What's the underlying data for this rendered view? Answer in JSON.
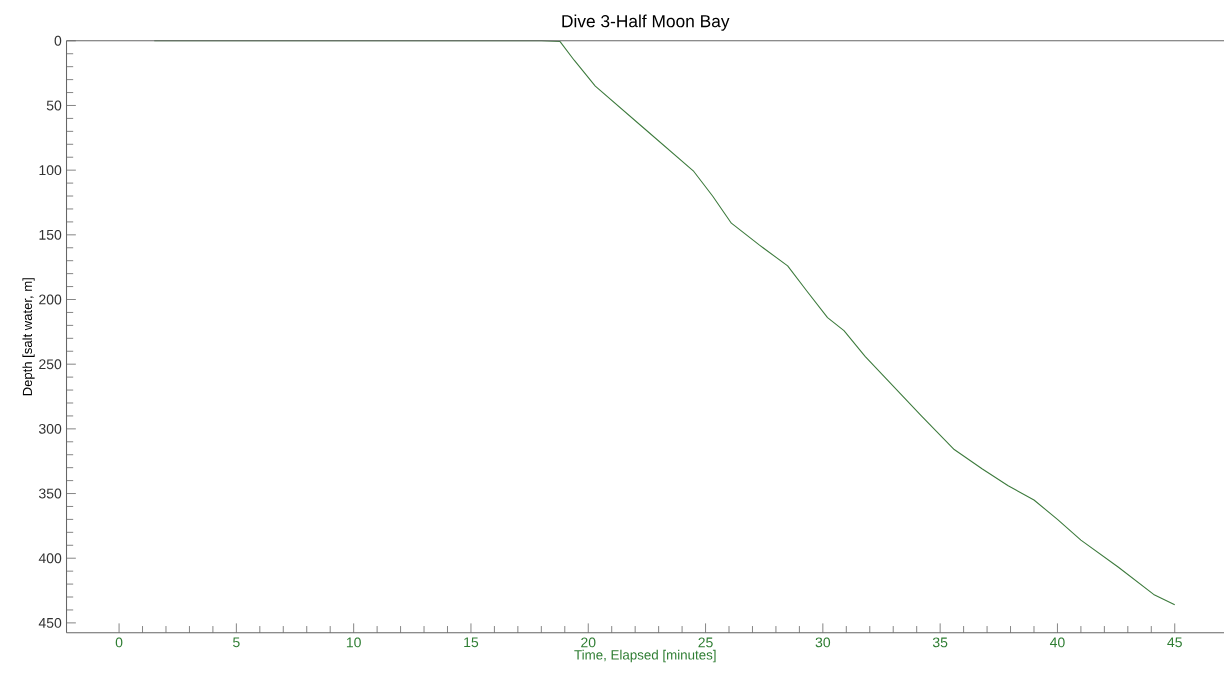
{
  "chart_data": {
    "type": "line",
    "title": "Dive 3-Half Moon Bay",
    "xlabel": "Time, Elapsed [minutes]",
    "ylabel": "Depth [salt water, m]",
    "x": [
      1.5,
      18.0,
      18.8,
      19.4,
      20.3,
      22.4,
      24.5,
      25.3,
      26.1,
      27.3,
      28.5,
      29.3,
      30.2,
      30.9,
      31.8,
      33.0,
      34.2,
      35.6,
      36.8,
      37.9,
      39.0,
      40.0,
      41.0,
      42.6,
      44.1,
      45.0
    ],
    "values": [
      0,
      0,
      0.6,
      15,
      35,
      68,
      101,
      120,
      141,
      158,
      174,
      193,
      214,
      224,
      244,
      267,
      290,
      316,
      331,
      344,
      355,
      370,
      386,
      407,
      428,
      436
    ],
    "color": "#3c7a3c",
    "marker": "none",
    "line_style": "solid",
    "xlim": [
      -2.24,
      47.1
    ],
    "ylim": [
      457.6,
      0
    ],
    "xticks": [
      0,
      5,
      10,
      15,
      20,
      25,
      30,
      35,
      40,
      45
    ],
    "yticks": [
      0,
      50,
      100,
      150,
      200,
      250,
      300,
      350,
      400,
      450
    ]
  }
}
